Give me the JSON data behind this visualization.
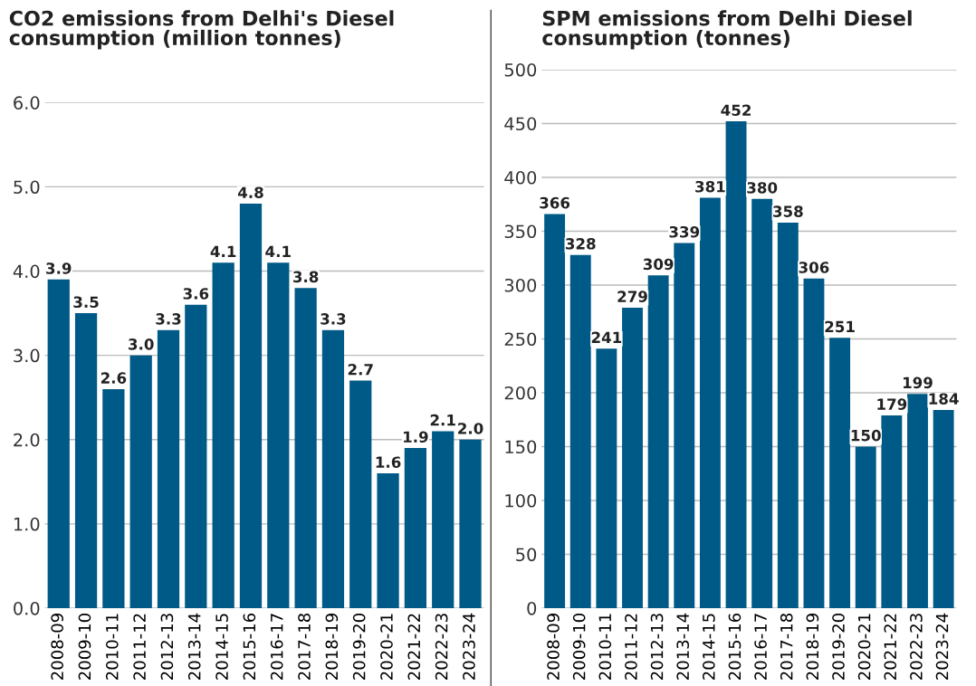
{
  "chart_data": [
    {
      "type": "bar",
      "title": "CO2 emissions from Delhi's Diesel\nconsumption (million tonnes)",
      "categories": [
        "2008-09",
        "2009-10",
        "2010-11",
        "2011-12",
        "2012-13",
        "2013-14",
        "2014-15",
        "2015-16",
        "2016-17",
        "2017-18",
        "2018-19",
        "2019-20",
        "2020-21",
        "2021-22",
        "2022-23",
        "2023-24"
      ],
      "values": [
        3.9,
        3.5,
        2.6,
        3.0,
        3.3,
        3.6,
        4.1,
        4.8,
        4.1,
        3.8,
        3.3,
        2.7,
        1.6,
        1.9,
        2.1,
        2.0
      ],
      "value_labels": [
        "3.9",
        "3.5",
        "2.6",
        "3.0",
        "3.3",
        "3.6",
        "4.1",
        "4.8",
        "4.1",
        "3.8",
        "3.3",
        "2.7",
        "1.6",
        "1.9",
        "2.1",
        "2.0"
      ],
      "color": "#005a87",
      "ylim": [
        0,
        6.0
      ],
      "yticks": [
        {
          "value": 0,
          "label": "0.0"
        },
        {
          "value": 1,
          "label": "1.0"
        },
        {
          "value": 2,
          "label": "2.0"
        },
        {
          "value": 3,
          "label": "3.0"
        },
        {
          "value": 4,
          "label": "4.0"
        },
        {
          "value": 5,
          "label": "5.0"
        },
        {
          "value": 6,
          "label": "6.0"
        }
      ],
      "grid": "y"
    },
    {
      "type": "bar",
      "title": "SPM emissions from Delhi Diesel\nconsumption (tonnes)",
      "categories": [
        "2008-09",
        "2009-10",
        "2010-11",
        "2011-12",
        "2012-13",
        "2013-14",
        "2014-15",
        "2015-16",
        "2016-17",
        "2017-18",
        "2018-19",
        "2019-20",
        "2020-21",
        "2021-22",
        "2022-23",
        "2023-24"
      ],
      "values": [
        366,
        328,
        241,
        279,
        309,
        339,
        381,
        452,
        380,
        358,
        306,
        251,
        150,
        179,
        199,
        184
      ],
      "data_labels": true,
      "color": "#005a87",
      "ylim": [
        0,
        500
      ],
      "yticks": [
        0,
        50,
        100,
        150,
        200,
        250,
        300,
        350,
        400,
        450,
        500
      ],
      "grid": "y"
    }
  ]
}
